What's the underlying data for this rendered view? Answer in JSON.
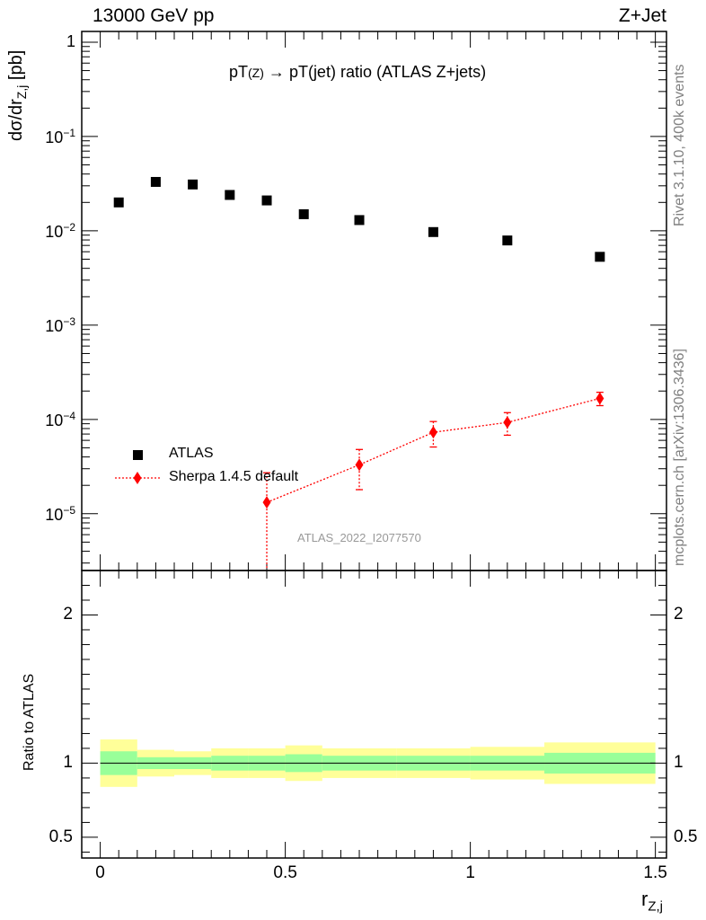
{
  "header": {
    "left": "13000 GeV pp",
    "right": "Z+Jet"
  },
  "main_title": {
    "part1": "pT",
    "part2": "(Z)",
    "arrow": "→",
    "part3": "pT(jet) ratio (ATLAS Z+jets)"
  },
  "side_text": {
    "rivet": "Rivet 3.1.10,  400k events",
    "source": "mcplots.cern.ch [arXiv:1306.3436]"
  },
  "watermark": "ATLAS_2022_I2077570",
  "legend": {
    "data_label": "ATLAS",
    "mc_label": "Sherpa 1.4.5 default",
    "position": "lower-left"
  },
  "y_axis_label": {
    "base": "dσ/dr",
    "sub": "Z,j",
    "unit": "[pb]"
  },
  "ratio_y_label": "Ratio to ATLAS",
  "x_axis_label": {
    "base": "r",
    "sub": "Z,j"
  },
  "colors": {
    "data": "#000000",
    "mc": "#ff0000",
    "band_inner": "#99ff99",
    "band_outer": "#ffff99",
    "side_text": "#808080"
  },
  "chart_data": [
    {
      "type": "scatter",
      "panel": "main",
      "y_scale": "log",
      "xlim": [
        -0.05,
        1.53
      ],
      "ylim": [
        2.5e-06,
        1.3
      ],
      "y_ticks": [
        {
          "value": 1,
          "label": "1",
          "exp": ""
        },
        {
          "value": 0.1,
          "label": "10",
          "exp": "−1"
        },
        {
          "value": 0.01,
          "label": "10",
          "exp": "−2"
        },
        {
          "value": 0.001,
          "label": "10",
          "exp": "−3"
        },
        {
          "value": 0.0001,
          "label": "10",
          "exp": "−4"
        },
        {
          "value": 1e-05,
          "label": "10",
          "exp": "−5"
        }
      ],
      "series": [
        {
          "name": "ATLAS",
          "marker": "square",
          "x": [
            0.05,
            0.15,
            0.25,
            0.35,
            0.45,
            0.55,
            0.7,
            0.9,
            1.1,
            1.35
          ],
          "values": [
            0.02,
            0.033,
            0.031,
            0.024,
            0.021,
            0.015,
            0.013,
            0.0097,
            0.0079,
            0.0053
          ]
        },
        {
          "name": "Sherpa 1.4.5 default",
          "marker": "diamond",
          "line": "dotted",
          "x": [
            0.45,
            0.7,
            0.9,
            1.1,
            1.35
          ],
          "values": [
            1.32e-05,
            3.3e-05,
            7.3e-05,
            9.3e-05,
            0.000167
          ],
          "err_low": [
            1.1e-05,
            1.5e-05,
            2.2e-05,
            2.5e-05,
            2.7e-05
          ],
          "err_high": [
            1.4e-05,
            1.5e-05,
            2.2e-05,
            2.5e-05,
            2.7e-05
          ]
        }
      ]
    },
    {
      "type": "area",
      "panel": "ratio",
      "y_scale": "linear",
      "xlim": [
        -0.05,
        1.53
      ],
      "ylim": [
        0.36,
        2.3
      ],
      "x_ticks": [
        {
          "value": 0,
          "label": "0"
        },
        {
          "value": 0.5,
          "label": "0.5"
        },
        {
          "value": 1,
          "label": "1"
        },
        {
          "value": 1.5,
          "label": "1.5"
        }
      ],
      "y_ticks": [
        {
          "value": 0.5,
          "label": "0.5"
        },
        {
          "value": 1,
          "label": "1"
        },
        {
          "value": 2,
          "label": "2"
        }
      ],
      "reference_line": 1,
      "bins": [
        {
          "lo": 0.0,
          "hi": 0.1,
          "inner_lo": 0.92,
          "inner_hi": 1.08,
          "outer_lo": 0.84,
          "outer_hi": 1.16
        },
        {
          "lo": 0.1,
          "hi": 0.2,
          "inner_lo": 0.96,
          "inner_hi": 1.04,
          "outer_lo": 0.91,
          "outer_hi": 1.09
        },
        {
          "lo": 0.2,
          "hi": 0.3,
          "inner_lo": 0.96,
          "inner_hi": 1.04,
          "outer_lo": 0.92,
          "outer_hi": 1.08
        },
        {
          "lo": 0.3,
          "hi": 0.4,
          "inner_lo": 0.95,
          "inner_hi": 1.05,
          "outer_lo": 0.9,
          "outer_hi": 1.1
        },
        {
          "lo": 0.4,
          "hi": 0.5,
          "inner_lo": 0.95,
          "inner_hi": 1.05,
          "outer_lo": 0.9,
          "outer_hi": 1.1
        },
        {
          "lo": 0.5,
          "hi": 0.6,
          "inner_lo": 0.94,
          "inner_hi": 1.06,
          "outer_lo": 0.88,
          "outer_hi": 1.12
        },
        {
          "lo": 0.6,
          "hi": 0.8,
          "inner_lo": 0.95,
          "inner_hi": 1.05,
          "outer_lo": 0.9,
          "outer_hi": 1.1
        },
        {
          "lo": 0.8,
          "hi": 1.0,
          "inner_lo": 0.95,
          "inner_hi": 1.05,
          "outer_lo": 0.9,
          "outer_hi": 1.1
        },
        {
          "lo": 1.0,
          "hi": 1.2,
          "inner_lo": 0.95,
          "inner_hi": 1.05,
          "outer_lo": 0.89,
          "outer_hi": 1.11
        },
        {
          "lo": 1.2,
          "hi": 1.5,
          "inner_lo": 0.93,
          "inner_hi": 1.07,
          "outer_lo": 0.86,
          "outer_hi": 1.14
        }
      ]
    }
  ]
}
